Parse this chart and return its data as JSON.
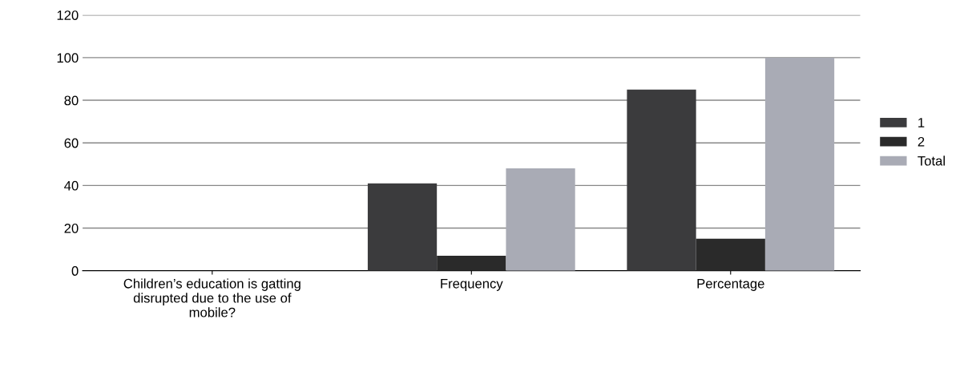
{
  "chart_data": {
    "type": "bar",
    "categories": [
      "Children’s education is gatting\ndisrupted due to the use of\nmobile?",
      "Frequency",
      "Percentage"
    ],
    "series": [
      {
        "name": "1",
        "color": "#3b3b3d",
        "values": [
          null,
          41,
          85
        ]
      },
      {
        "name": "2",
        "color": "#2a2a2a",
        "values": [
          null,
          7,
          15
        ]
      },
      {
        "name": "Total",
        "color": "#a9abb5",
        "values": [
          null,
          48,
          100
        ]
      }
    ],
    "ylim": [
      0,
      120
    ],
    "yticks": [
      0,
      20,
      40,
      60,
      80,
      100,
      120
    ],
    "grid": "y",
    "legend": "right"
  }
}
